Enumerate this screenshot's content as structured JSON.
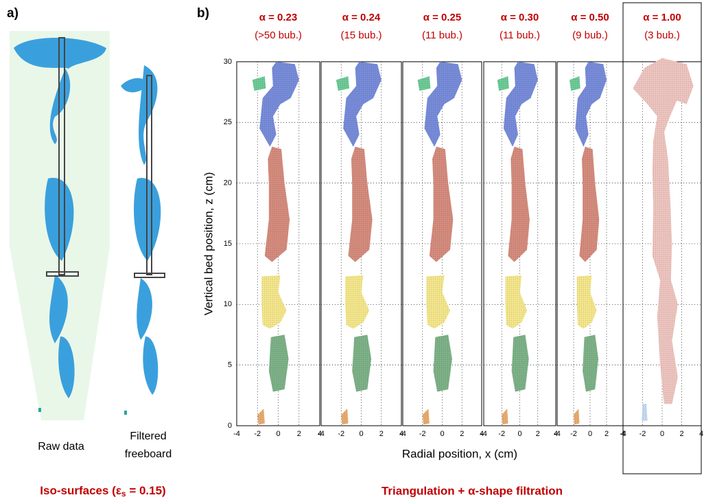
{
  "panel_a": {
    "label": "a)",
    "captions": [
      "Raw data",
      "Filtered\nfreeboard"
    ],
    "title_parts": [
      "Iso-surfaces (ε",
      "s",
      " = 0.15)"
    ]
  },
  "panel_b": {
    "label": "b)",
    "y_label": "Vertical bed position, z (cm)",
    "x_label": "Radial position, x (cm)",
    "title": "Triangulation + α-shape filtration",
    "yticks": [
      0,
      5,
      10,
      15,
      20,
      25,
      30
    ],
    "xticks": [
      -4,
      -2,
      0,
      2,
      4
    ],
    "subplots": [
      {
        "alpha": "α = 0.23",
        "bubbles": "(>50 bub.)"
      },
      {
        "alpha": "α = 0.24",
        "bubbles": "(15 bub.)"
      },
      {
        "alpha": "α = 0.25",
        "bubbles": "(11 bub.)"
      },
      {
        "alpha": "α = 0.30",
        "bubbles": "(11 bub.)"
      },
      {
        "alpha": "α = 0.50",
        "bubbles": "(9 bub.)"
      },
      {
        "alpha": "α = 1.00",
        "bubbles": "(3 bub.)"
      }
    ]
  }
}
